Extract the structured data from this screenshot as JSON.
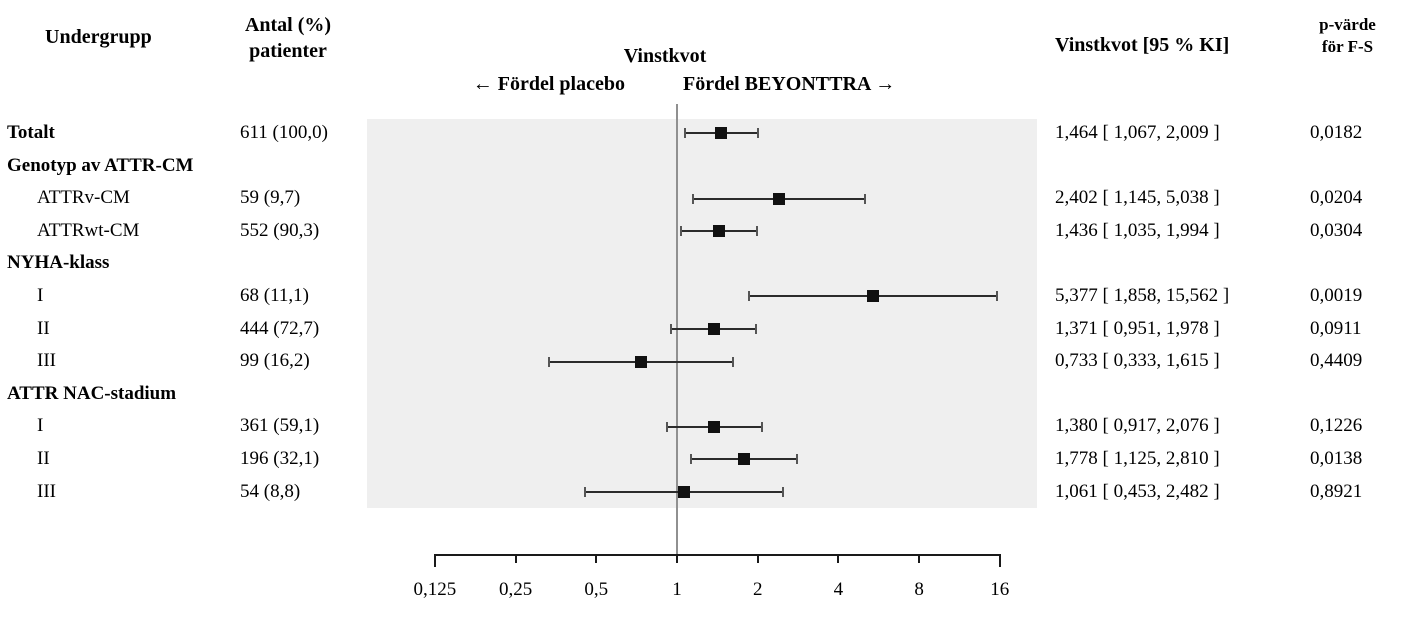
{
  "headers": {
    "subgroup": "Undergrupp",
    "n_line1": "Antal (%)",
    "n_line2": "patienter",
    "plot_title": "Vinstkvot",
    "favor_left": "← Fördel placebo",
    "favor_right": "Fördel BEYONTTRA →",
    "estimate": "Vinstkvot [95 % KI]",
    "p_line1": "p-värde",
    "p_line2": "för F-S"
  },
  "chart_data": {
    "type": "forest",
    "scale": "log2",
    "xlabel": "Vinstkvot",
    "axis_range": [
      0.125,
      16
    ],
    "reference_value": 1,
    "axis_ticks": [
      "0,125",
      "0,25",
      "0,5",
      "1",
      "2",
      "4",
      "8",
      "16"
    ],
    "axis_tick_values": [
      0.125,
      0.25,
      0.5,
      1,
      2,
      4,
      8,
      16
    ],
    "rows": [
      {
        "label": "Totalt",
        "bold": true,
        "indent": false,
        "n": "611 (100,0)",
        "estimate": 1.464,
        "ci_low": 1.067,
        "ci_high": 2.009,
        "estimate_text": "1,464 [ 1,067, 2,009 ]",
        "p": "0,0182"
      },
      {
        "label": "Genotyp av ATTR-CM",
        "bold": true,
        "indent": false
      },
      {
        "label": "ATTRv-CM",
        "bold": false,
        "indent": true,
        "n": "59 (9,7)",
        "estimate": 2.402,
        "ci_low": 1.145,
        "ci_high": 5.038,
        "estimate_text": "2,402 [ 1,145, 5,038 ]",
        "p": "0,0204"
      },
      {
        "label": "ATTRwt-CM",
        "bold": false,
        "indent": true,
        "n": "552 (90,3)",
        "estimate": 1.436,
        "ci_low": 1.035,
        "ci_high": 1.994,
        "estimate_text": "1,436 [ 1,035, 1,994 ]",
        "p": "0,0304"
      },
      {
        "label": "NYHA-klass",
        "bold": true,
        "indent": false
      },
      {
        "label": "I",
        "bold": false,
        "indent": true,
        "n": "68 (11,1)",
        "estimate": 5.377,
        "ci_low": 1.858,
        "ci_high": 15.562,
        "estimate_text": "5,377 [ 1,858, 15,562 ]",
        "p": "0,0019"
      },
      {
        "label": "II",
        "bold": false,
        "indent": true,
        "n": "444 (72,7)",
        "estimate": 1.371,
        "ci_low": 0.951,
        "ci_high": 1.978,
        "estimate_text": "1,371 [ 0,951, 1,978 ]",
        "p": "0,0911"
      },
      {
        "label": "III",
        "bold": false,
        "indent": true,
        "n": "99 (16,2)",
        "estimate": 0.733,
        "ci_low": 0.333,
        "ci_high": 1.615,
        "estimate_text": "0,733 [ 0,333, 1,615 ]",
        "p": "0,4409"
      },
      {
        "label": "ATTR NAC-stadium",
        "bold": true,
        "indent": false
      },
      {
        "label": "I",
        "bold": false,
        "indent": true,
        "n": "361 (59,1)",
        "estimate": 1.38,
        "ci_low": 0.917,
        "ci_high": 2.076,
        "estimate_text": "1,380 [ 0,917, 2,076 ]",
        "p": "0,1226"
      },
      {
        "label": "II",
        "bold": false,
        "indent": true,
        "n": "196 (32,1)",
        "estimate": 1.778,
        "ci_low": 1.125,
        "ci_high": 2.81,
        "estimate_text": "1,778 [ 1,125, 2,810 ]",
        "p": "0,0138"
      },
      {
        "label": "III",
        "bold": false,
        "indent": true,
        "n": "54 (8,8)",
        "estimate": 1.061,
        "ci_low": 0.453,
        "ci_high": 2.482,
        "estimate_text": "1,061 [ 0,453, 2,482 ]",
        "p": "0,8921"
      }
    ]
  },
  "colors": {
    "plot_band": "#efefef",
    "marker": "#111111",
    "ci_line": "#2b2b2b",
    "ci_cap": "#555555",
    "reference_line": "#909090",
    "axis": "#1a1a1a"
  }
}
